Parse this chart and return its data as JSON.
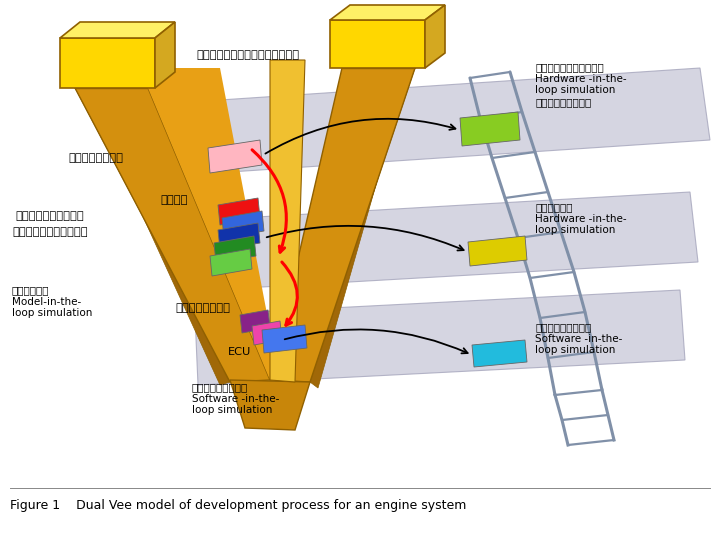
{
  "title": "Figure 1    Dual Vee model of development process for an engine system",
  "bg_color": "#ffffff",
  "labels": {
    "engine_system_arch": "エンジンシステムアーキテクチャ",
    "engine_system": "エンジンシステム",
    "engine": "エンジン",
    "engine_control": "エンジン制御システム",
    "thermal_mgmt": "熱マネジメントシステム",
    "control_design": "制御系設計：\nModel-in-the-\nloop simulation",
    "control_sw": "制御ソフトウェア",
    "ecu": "ECU",
    "sw_design": "ソフトウェア設計：\nSoftware -in-the-\nloop simulation",
    "engine_sys_verify": "エンジンシステム検証：\nHardware -in-the-\nloop simulation\n（エンジンベンチ）",
    "control_verify": "制御系検証：\nHardware -in-the-\nloop simulation",
    "sw_verify": "ソフトウェア検証：\nSoftware -in-the-\nloop simulation"
  },
  "colors": {
    "gold_front": "#C8860A",
    "gold_top": "#FFD700",
    "gold_top2": "#FFF066",
    "gold_right": "#D4A820",
    "gold_mid": "#E09B12",
    "brown_dark": "#8B6000",
    "gray_plane": "#C8C8D8",
    "rail_color": "#8090A8",
    "pink_block": "#FFB6C1",
    "red_block": "#EE1111",
    "blue_block": "#3366DD",
    "dark_blue_block": "#1133AA",
    "green_block": "#228B22",
    "light_green_block": "#66CC44",
    "purple_block": "#882288",
    "magenta_block": "#EE44AA",
    "blue_center": "#4477EE",
    "yellow_verify": "#DDCC00",
    "green_verify": "#88CC22",
    "cyan_verify": "#22BBDD"
  }
}
